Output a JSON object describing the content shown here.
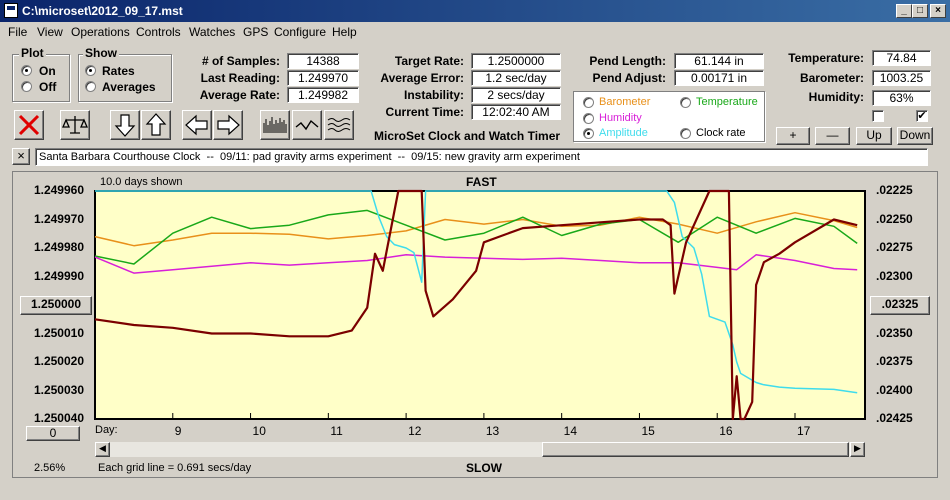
{
  "window": {
    "title": "C:\\microset\\2012_09_17.mst",
    "min": "_",
    "max": "□",
    "close": "×"
  },
  "menu": [
    "File",
    "View",
    "Operations",
    "Controls",
    "Watches",
    "GPS",
    "Configure",
    "Help"
  ],
  "plot_group": {
    "title": "Plot",
    "on": "On",
    "off": "Off",
    "selected": "On"
  },
  "show_group": {
    "title": "Show",
    "rates": "Rates",
    "averages": "Averages",
    "selected": "Rates"
  },
  "stats": {
    "samples_label": "# of Samples:",
    "samples": "14388",
    "last_label": "Last Reading:",
    "last": "1.249970",
    "avg_label": "Average Rate:",
    "avg": "1.249982",
    "target_label": "Target Rate:",
    "target": "1.2500000",
    "avgerr_label": "Average Error:",
    "avgerr": "1.2 sec/day",
    "instab_label": "Instability:",
    "instab": "2 secs/day",
    "time_label": "Current Time:",
    "time": "12:02:40 AM",
    "pendlen_label": "Pend Length:",
    "pendlen": "61.144 in",
    "pendadj_label": "Pend Adjust:",
    "pendadj": "0.00171 in",
    "temp_label": "Temperature:",
    "temp": "74.84",
    "baro_label": "Barometer:",
    "baro": "1003.25",
    "hum_label": "Humidity:",
    "hum": "63%"
  },
  "app_name": "MicroSet Clock and Watch Timer",
  "sensor_options": {
    "barometer": "Barometer",
    "temperature": "Temperature",
    "humidity": "Humidity",
    "amplitude": "Amplitude",
    "clock_rate": "Clock rate",
    "selected": "Amplitude"
  },
  "small_buttons": {
    "plus": "+",
    "minus": "—",
    "up": "Up",
    "down": "Down"
  },
  "checkboxes": {
    "left_checked": false,
    "right_checked": true
  },
  "description": "Santa Barbara Courthouse Clock  --  09/11: pad gravity arms experiment  --  09/15: new gravity arm experiment",
  "clear_btn": "×",
  "chart": {
    "days_shown": "10.0 days shown",
    "fast": "FAST",
    "slow": "SLOW",
    "day_label": "Day:",
    "grid_note": "Each grid line = 0.691 secs/day",
    "percent": "2.56%",
    "center_left": "1.250000",
    "center_right": ".02325",
    "zero_btn": "0"
  },
  "colors": {
    "rate": "#7b0000",
    "barometer": "#e8901a",
    "temperature": "#19a819",
    "humidity": "#d81fd8",
    "amplitude": "#3fdcec",
    "plot_bg": "#ffffc8"
  },
  "icons": [
    "clear-x-icon",
    "balance-scale-icon",
    "arrow-down-icon",
    "arrow-up-icon",
    "arrow-left-icon",
    "arrow-right-icon",
    "bars-chart-icon",
    "wave-icon",
    "multi-wave-icon"
  ],
  "chart_data": {
    "type": "line",
    "title": "FAST",
    "xlabel": "Day:",
    "x_ticks": [
      9,
      10,
      11,
      12,
      13,
      14,
      15,
      16,
      17
    ],
    "xlim": [
      8,
      17.9
    ],
    "y_ticks_left": [
      "1.249960",
      "1.249970",
      "1.249980",
      "1.249990",
      "1.250000",
      "1.250010",
      "1.250020",
      "1.250030",
      "1.250040"
    ],
    "ylim_left": [
      1.24996,
      1.25004
    ],
    "y_ticks_right": [
      ".02225",
      ".02250",
      ".02275",
      ".02300",
      ".02325",
      ".02350",
      ".02375",
      ".02400",
      ".02425"
    ],
    "ylim_right": [
      0.02225,
      0.02425
    ],
    "series": [
      {
        "name": "Clock rate",
        "axis": "left",
        "x": [
          8.0,
          8.5,
          9.0,
          9.5,
          10.0,
          10.5,
          11.0,
          11.3,
          11.5,
          11.6,
          11.7,
          11.9,
          12.0,
          12.1,
          12.2,
          12.25,
          12.35,
          12.6,
          12.9,
          13.0,
          13.2,
          13.5,
          14.0,
          14.5,
          15.0,
          15.3,
          15.4,
          15.45,
          15.6,
          15.9,
          16.0,
          16.15,
          16.2,
          16.25,
          16.3,
          16.35,
          16.45,
          16.5,
          16.6,
          16.8,
          17.0,
          17.5,
          17.8
        ],
        "y": [
          1.250005,
          1.250007,
          1.250008,
          1.25001,
          1.25001,
          1.250011,
          1.250011,
          1.250009,
          1.250001,
          1.249982,
          1.249988,
          1.24996,
          1.24996,
          1.24996,
          1.24996,
          1.249995,
          1.250004,
          1.249998,
          1.249988,
          1.249978,
          1.249976,
          1.249973,
          1.249972,
          1.249971,
          1.24997,
          1.24997,
          1.249972,
          1.249996,
          1.249978,
          1.24996,
          1.24996,
          1.24996,
          1.25004,
          1.250025,
          1.25004,
          1.25004,
          1.250034,
          1.249993,
          1.249985,
          1.249982,
          1.249978,
          1.24997,
          1.249972
        ]
      },
      {
        "name": "Barometer",
        "axis": "right",
        "x": [
          8.0,
          8.5,
          9.0,
          9.5,
          10.0,
          10.5,
          11.0,
          11.5,
          12.0,
          12.5,
          13.0,
          13.5,
          14.0,
          14.5,
          15.0,
          15.5,
          16.0,
          16.5,
          17.0,
          17.5,
          17.8
        ],
        "y": [
          0.02265,
          0.02273,
          0.02268,
          0.02262,
          0.02262,
          0.02263,
          0.02267,
          0.02264,
          0.0226,
          0.0225,
          0.02254,
          0.0225,
          0.02256,
          0.02255,
          0.02248,
          0.02254,
          0.02262,
          0.02252,
          0.02244,
          0.02251,
          0.02257
        ]
      },
      {
        "name": "Temperature",
        "axis": "right",
        "x": [
          8.0,
          8.5,
          9.0,
          9.5,
          10.0,
          10.5,
          11.0,
          11.5,
          12.0,
          12.5,
          13.0,
          13.5,
          14.0,
          14.5,
          15.0,
          15.5,
          16.0,
          16.5,
          17.0,
          17.5,
          17.8
        ],
        "y": [
          0.02282,
          0.02289,
          0.02262,
          0.02248,
          0.02258,
          0.02255,
          0.02246,
          0.02242,
          0.02255,
          0.02268,
          0.02262,
          0.02248,
          0.02264,
          0.02254,
          0.0225,
          0.0227,
          0.02248,
          0.02262,
          0.02249,
          0.02256,
          0.02271
        ]
      },
      {
        "name": "Humidity",
        "axis": "right",
        "x": [
          8.0,
          8.5,
          9.0,
          9.5,
          10.0,
          10.5,
          11.0,
          11.5,
          12.0,
          12.5,
          13.0,
          13.5,
          14.0,
          14.5,
          15.0,
          15.5,
          16.0,
          16.25,
          16.5,
          17.0,
          17.5,
          17.8
        ],
        "y": [
          0.02283,
          0.02297,
          0.02294,
          0.02291,
          0.02288,
          0.0229,
          0.02288,
          0.02286,
          0.02281,
          0.02283,
          0.02284,
          0.02285,
          0.02284,
          0.02286,
          0.02288,
          0.02288,
          0.02292,
          0.02294,
          0.02281,
          0.02286,
          0.02293,
          0.02294
        ]
      },
      {
        "name": "Amplitude",
        "axis": "right",
        "x": [
          8.0,
          10.0,
          11.0,
          11.55,
          11.65,
          11.75,
          11.85,
          12.0,
          12.1,
          12.2,
          12.25,
          12.3,
          13.0,
          14.0,
          15.0,
          15.35,
          15.45,
          15.55,
          15.7,
          15.8,
          15.9,
          16.1,
          16.2,
          16.25,
          16.3,
          16.5,
          16.6,
          16.8,
          17.0,
          17.5,
          17.8
        ],
        "y": [
          0.02225,
          0.02225,
          0.02225,
          0.02225,
          0.02248,
          0.02265,
          0.02272,
          0.02275,
          0.02279,
          0.02305,
          0.02225,
          0.02225,
          0.02225,
          0.02225,
          0.02225,
          0.02225,
          0.02235,
          0.02265,
          0.02275,
          0.02298,
          0.02335,
          0.0234,
          0.0236,
          0.02375,
          0.02385,
          0.02393,
          0.02395,
          0.02397,
          0.02398,
          0.02399,
          0.02402
        ]
      }
    ]
  }
}
